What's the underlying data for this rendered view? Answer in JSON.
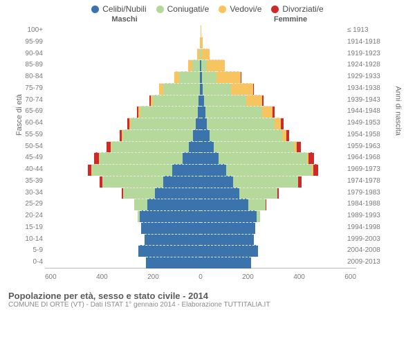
{
  "legend": [
    {
      "label": "Celibi/Nubili",
      "color": "#3b74ad"
    },
    {
      "label": "Coniugati/e",
      "color": "#b5d99a"
    },
    {
      "label": "Vedovi/e",
      "color": "#f7c45f"
    },
    {
      "label": "Divorziati/e",
      "color": "#cf2a2a"
    }
  ],
  "header_male": "Maschi",
  "header_female": "Femmine",
  "axis_left": "Fasce di età",
  "axis_right": "Anni di nascita",
  "xlim": 600,
  "xticks": [
    "600",
    "400",
    "200",
    "0",
    "200",
    "400",
    "600"
  ],
  "rows": [
    {
      "age": "100+",
      "birth": "≤ 1913",
      "m": [
        0,
        0,
        1,
        0
      ],
      "f": [
        0,
        0,
        2,
        0
      ]
    },
    {
      "age": "95-99",
      "birth": "1914-1918",
      "m": [
        0,
        0,
        3,
        0
      ],
      "f": [
        0,
        0,
        8,
        0
      ]
    },
    {
      "age": "90-94",
      "birth": "1919-1923",
      "m": [
        0,
        3,
        10,
        0
      ],
      "f": [
        0,
        5,
        30,
        0
      ]
    },
    {
      "age": "85-89",
      "birth": "1924-1928",
      "m": [
        2,
        30,
        15,
        0
      ],
      "f": [
        3,
        20,
        70,
        0
      ]
    },
    {
      "age": "80-84",
      "birth": "1929-1933",
      "m": [
        3,
        80,
        18,
        1
      ],
      "f": [
        5,
        55,
        95,
        2
      ]
    },
    {
      "age": "75-79",
      "birth": "1934-1938",
      "m": [
        4,
        140,
        15,
        2
      ],
      "f": [
        8,
        110,
        85,
        3
      ]
    },
    {
      "age": "70-74",
      "birth": "1939-1943",
      "m": [
        8,
        175,
        10,
        4
      ],
      "f": [
        12,
        165,
        60,
        5
      ]
    },
    {
      "age": "65-69",
      "birth": "1944-1948",
      "m": [
        12,
        220,
        7,
        6
      ],
      "f": [
        18,
        220,
        40,
        8
      ]
    },
    {
      "age": "60-64",
      "birth": "1949-1953",
      "m": [
        20,
        250,
        5,
        8
      ],
      "f": [
        25,
        260,
        25,
        10
      ]
    },
    {
      "age": "55-59",
      "birth": "1954-1958",
      "m": [
        30,
        270,
        3,
        10
      ],
      "f": [
        35,
        280,
        15,
        12
      ]
    },
    {
      "age": "50-54",
      "birth": "1959-1963",
      "m": [
        45,
        300,
        2,
        15
      ],
      "f": [
        50,
        310,
        10,
        18
      ]
    },
    {
      "age": "45-49",
      "birth": "1964-1968",
      "m": [
        70,
        320,
        2,
        18
      ],
      "f": [
        70,
        340,
        6,
        22
      ]
    },
    {
      "age": "40-44",
      "birth": "1969-1973",
      "m": [
        110,
        310,
        1,
        15
      ],
      "f": [
        100,
        330,
        4,
        20
      ]
    },
    {
      "age": "35-39",
      "birth": "1974-1978",
      "m": [
        145,
        235,
        0,
        10
      ],
      "f": [
        125,
        250,
        2,
        12
      ]
    },
    {
      "age": "30-34",
      "birth": "1979-1983",
      "m": [
        175,
        125,
        0,
        5
      ],
      "f": [
        150,
        145,
        1,
        6
      ]
    },
    {
      "age": "25-29",
      "birth": "1984-1988",
      "m": [
        205,
        50,
        0,
        1
      ],
      "f": [
        185,
        65,
        0,
        2
      ]
    },
    {
      "age": "20-24",
      "birth": "1989-1993",
      "m": [
        235,
        8,
        0,
        0
      ],
      "f": [
        215,
        15,
        0,
        0
      ]
    },
    {
      "age": "15-19",
      "birth": "1994-1998",
      "m": [
        230,
        0,
        0,
        0
      ],
      "f": [
        210,
        0,
        0,
        0
      ]
    },
    {
      "age": "10-14",
      "birth": "1999-2003",
      "m": [
        215,
        0,
        0,
        0
      ],
      "f": [
        205,
        0,
        0,
        0
      ]
    },
    {
      "age": "5-9",
      "birth": "2004-2008",
      "m": [
        240,
        0,
        0,
        0
      ],
      "f": [
        220,
        0,
        0,
        0
      ]
    },
    {
      "age": "0-4",
      "birth": "2009-2013",
      "m": [
        210,
        0,
        0,
        0
      ],
      "f": [
        195,
        0,
        0,
        0
      ]
    }
  ],
  "footer_title": "Popolazione per età, sesso e stato civile - 2014",
  "footer_sub": "COMUNE DI ORTE (VT) - Dati ISTAT 1° gennaio 2014 - Elaborazione TUTTITALIA.IT"
}
